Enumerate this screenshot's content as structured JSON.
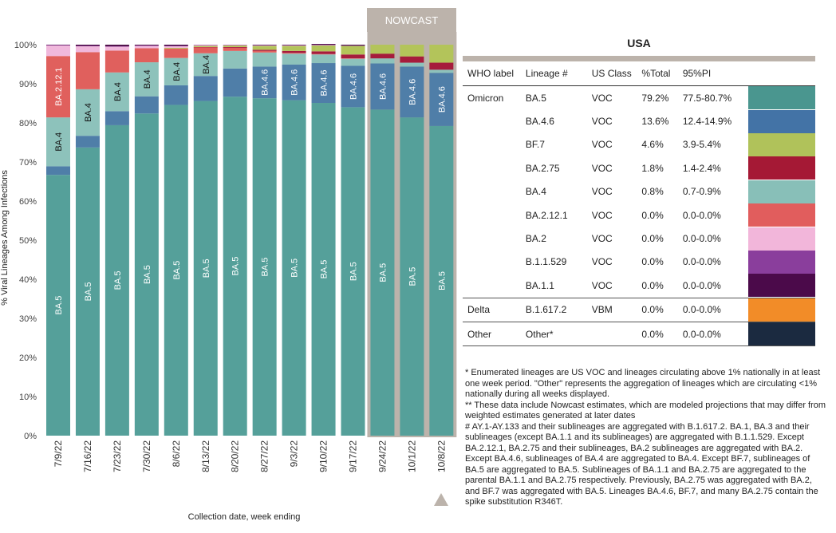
{
  "nowcast_label": "NOWCAST",
  "chart_data": {
    "type": "bar",
    "stacked": true,
    "ylabel": "% Viral Lineages Among Infections",
    "xlabel": "Collection date, week ending",
    "ylim": [
      0,
      100
    ],
    "yticks": [
      "0%",
      "10%",
      "20%",
      "30%",
      "40%",
      "50%",
      "60%",
      "70%",
      "80%",
      "90%",
      "100%"
    ],
    "categories": [
      "7/9/22",
      "7/16/22",
      "7/23/22",
      "7/30/22",
      "8/6/22",
      "8/13/22",
      "8/20/22",
      "8/27/22",
      "9/3/22",
      "9/10/22",
      "9/17/22",
      "9/24/22",
      "10/1/22",
      "10/8/22"
    ],
    "nowcast_categories": [
      "9/24/22",
      "10/1/22",
      "10/8/22"
    ],
    "series": [
      {
        "name": "BA.5",
        "color": "#55a09a",
        "values": [
          66.7,
          73.7,
          79.4,
          82.4,
          84.6,
          85.6,
          86.7,
          86.3,
          85.8,
          85.1,
          84.0,
          83.4,
          81.4,
          79.2
        ]
      },
      {
        "name": "BA.4.6",
        "color": "#4f7ea8",
        "values": [
          2.2,
          3.0,
          3.6,
          4.4,
          5.0,
          6.4,
          7.2,
          8.1,
          9.1,
          10.2,
          10.6,
          11.8,
          13.0,
          13.6
        ]
      },
      {
        "name": "BA.4",
        "color": "#8dc2bb",
        "values": [
          12.5,
          11.9,
          9.9,
          8.7,
          7.0,
          5.8,
          4.5,
          3.6,
          2.8,
          2.2,
          1.8,
          1.3,
          1.0,
          0.8
        ]
      },
      {
        "name": "BA.2.12.1",
        "color": "#e0605d",
        "values": [
          15.7,
          9.5,
          5.6,
          3.6,
          2.4,
          1.5,
          0.8,
          0.4,
          0.2,
          0.1,
          0.1,
          0,
          0,
          0
        ]
      },
      {
        "name": "BA.2.75",
        "color": "#a61c3c",
        "values": [
          0,
          0,
          0,
          0,
          0,
          0.1,
          0.2,
          0.3,
          0.5,
          0.7,
          1.0,
          1.2,
          1.6,
          1.8
        ]
      },
      {
        "name": "BF.7",
        "color": "#b3c45a",
        "values": [
          0,
          0,
          0,
          0,
          0.2,
          0.3,
          0.4,
          1.0,
          1.3,
          1.5,
          2.2,
          2.3,
          3.0,
          4.6
        ]
      },
      {
        "name": "BA.2",
        "color": "#f0b8dc",
        "values": [
          2.7,
          1.5,
          1.0,
          0.6,
          0.4,
          0.2,
          0.1,
          0.1,
          0.1,
          0.1,
          0,
          0,
          0,
          0
        ]
      },
      {
        "name": "B.1.1.529",
        "color": "#8c3d9a",
        "values": [
          0.1,
          0.1,
          0.1,
          0.1,
          0.1,
          0.1,
          0.1,
          0.1,
          0.1,
          0.1,
          0.1,
          0,
          0,
          0
        ]
      },
      {
        "name": "BA.1.1",
        "color": "#4e0d48",
        "values": [
          0.1,
          0.3,
          0.4,
          0.2,
          0.3,
          0,
          0,
          0.1,
          0.1,
          0.2,
          0.2,
          0,
          0,
          0
        ]
      }
    ],
    "bar_labels": [
      {
        "series": "BA.5",
        "text": "BA.5",
        "indices": [
          0,
          1,
          2,
          3,
          4,
          5,
          6,
          7,
          8,
          9,
          10,
          11,
          12,
          13
        ]
      },
      {
        "series": "BA.4.6",
        "text": "BA.4.6",
        "indices": [
          7,
          8,
          9,
          10,
          11,
          12,
          13
        ]
      },
      {
        "series": "BA.4",
        "text": "BA.4",
        "indices": [
          0,
          1,
          2,
          3,
          4,
          5
        ]
      },
      {
        "series": "BA.2.12.1",
        "text": "BA.2.12.1",
        "indices": [
          0
        ]
      }
    ]
  },
  "legend": {
    "title": "USA",
    "headers": [
      "WHO label",
      "Lineage #",
      "US Class",
      "%Total",
      "95%PI"
    ],
    "rows": [
      {
        "who": "Omicron",
        "lineage": "BA.5",
        "cls": "VOC",
        "pct": "79.2%",
        "pi": "77.5-80.7%",
        "color": "#4a968f"
      },
      {
        "who": "",
        "lineage": "BA.4.6",
        "cls": "VOC",
        "pct": "13.6%",
        "pi": "12.4-14.9%",
        "color": "#4373a6"
      },
      {
        "who": "",
        "lineage": "BF.7",
        "cls": "VOC",
        "pct": "4.6%",
        "pi": "3.9-5.4%",
        "color": "#b0c25a"
      },
      {
        "who": "",
        "lineage": "BA.2.75",
        "cls": "VOC",
        "pct": "1.8%",
        "pi": "1.4-2.4%",
        "color": "#a51935"
      },
      {
        "who": "",
        "lineage": "BA.4",
        "cls": "VOC",
        "pct": "0.8%",
        "pi": "0.7-0.9%",
        "color": "#88bfb8"
      },
      {
        "who": "",
        "lineage": "BA.2.12.1",
        "cls": "VOC",
        "pct": "0.0%",
        "pi": "0.0-0.0%",
        "color": "#e15d5d"
      },
      {
        "who": "",
        "lineage": "BA.2",
        "cls": "VOC",
        "pct": "0.0%",
        "pi": "0.0-0.0%",
        "color": "#f2b6da"
      },
      {
        "who": "",
        "lineage": "B.1.1.529",
        "cls": "VOC",
        "pct": "0.0%",
        "pi": "0.0-0.0%",
        "color": "#8a3e9c"
      },
      {
        "who": "",
        "lineage": "BA.1.1",
        "cls": "VOC",
        "pct": "0.0%",
        "pi": "0.0-0.0%",
        "color": "#4b0a4a"
      },
      {
        "who": "Delta",
        "lineage": "B.1.617.2",
        "cls": "VBM",
        "pct": "0.0%",
        "pi": "0.0-0.0%",
        "color": "#f28c28"
      },
      {
        "who": "Other",
        "lineage": "Other*",
        "cls": "",
        "pct": "0.0%",
        "pi": "0.0-0.0%",
        "color": "#1b2a40"
      }
    ]
  },
  "notes": {
    "n1": "*     Enumerated lineages are US VOC and lineages circulating above 1% nationally in at least one week period. \"Other\" represents the aggregation of lineages which are circulating <1% nationally during all weeks displayed.",
    "n2": "**     These data include Nowcast estimates, which are modeled projections that may differ from weighted estimates generated at later dates",
    "n3": "#     AY.1-AY.133 and their sublineages are aggregated with B.1.617.2. BA.1, BA.3 and their sublineages (except BA.1.1 and its sublineages) are aggregated with B.1.1.529. Except BA.2.12.1, BA.2.75 and their sublineages, BA.2 sublineages are aggregated with BA.2. Except BA.4.6, sublineages of BA.4 are aggregated to BA.4. Except BF.7, sublineages of BA.5 are aggregated to BA.5. Sublineages of BA.1.1 and BA.2.75 are aggregated to the parental BA.1.1 and BA.2.75 respectively. Previously, BA.2.75 was aggregated with BA.2, and BF.7 was aggregated with BA.5. Lineages BA.4.6, BF.7, and many BA.2.75 contain the spike substitution R346T."
  }
}
